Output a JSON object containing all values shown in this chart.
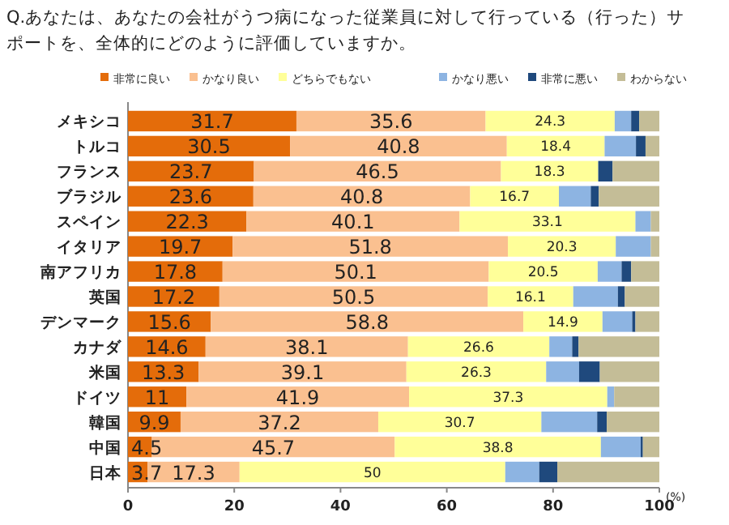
{
  "chart_data": {
    "type": "bar",
    "orientation": "horizontal",
    "stacked": true,
    "title": "Q.あなたは、あなたの会社がうつ病になった従業員に対して行っている（行った）サポートを、全体的にどのように評価していますか。",
    "xlabel": "(%)",
    "categories": [
      "メキシコ",
      "トルコ",
      "フランス",
      "ブラジル",
      "スペイン",
      "イタリア",
      "南アフリカ",
      "英国",
      "デンマーク",
      "カナダ",
      "米国",
      "ドイツ",
      "韓国",
      "中国",
      "日本"
    ],
    "xlim": [
      0,
      100
    ],
    "xticks": [
      0,
      20,
      40,
      60,
      80,
      100
    ],
    "grid": false,
    "legend": "top",
    "series": [
      {
        "name": "非常に良い",
        "color": "#e46c0a",
        "values": [
          31.7,
          30.5,
          23.7,
          23.6,
          22.3,
          19.7,
          17.8,
          17.2,
          15.6,
          14.6,
          13.3,
          11,
          9.9,
          4.5,
          3.7
        ],
        "value_labels": [
          "31.7",
          "30.5",
          "23.7",
          "23.6",
          "22.3",
          "19.7",
          "17.8",
          "17.2",
          "15.6",
          "14.6",
          "13.3",
          "11",
          "9.9",
          "4.5",
          "3.7"
        ]
      },
      {
        "name": "かなり良い",
        "color": "#fac090",
        "values": [
          35.6,
          40.8,
          46.5,
          40.8,
          40.1,
          51.8,
          50.1,
          50.5,
          58.8,
          38.1,
          39.1,
          41.9,
          37.2,
          45.7,
          17.3
        ],
        "value_labels": [
          "35.6",
          "40.8",
          "46.5",
          "40.8",
          "40.1",
          "51.8",
          "50.1",
          "50.5",
          "58.8",
          "38.1",
          "39.1",
          "41.9",
          "37.2",
          "45.7",
          "17.3"
        ]
      },
      {
        "name": "どちらでもない",
        "color": "#ffff99",
        "values": [
          24.3,
          18.4,
          18.3,
          16.7,
          33.1,
          20.3,
          20.5,
          16.1,
          14.9,
          26.6,
          26.3,
          37.3,
          30.7,
          38.8,
          50
        ],
        "value_labels": [
          "24.3",
          "18.4",
          "18.3",
          "16.7",
          "33.1",
          "20.3",
          "20.5",
          "16.1",
          "14.9",
          "26.6",
          "26.3",
          "37.3",
          "30.7",
          "38.8",
          "50"
        ]
      },
      {
        "name": "かなり悪い",
        "color": "#8db4e2",
        "values": [
          3.1,
          5.9,
          0,
          6.0,
          2.9,
          6.6,
          4.5,
          8.4,
          5.6,
          4.3,
          6.2,
          1.3,
          10.5,
          7.5,
          6.4
        ]
      },
      {
        "name": "非常に悪い",
        "color": "#1f497d",
        "values": [
          1.5,
          1.8,
          2.7,
          1.5,
          0,
          0,
          1.8,
          1.3,
          0.6,
          1.2,
          3.9,
          0,
          1.8,
          0.4,
          3.4
        ]
      },
      {
        "name": "わからない",
        "color": "#c4bd97",
        "values": [
          3.8,
          2.6,
          8.8,
          11.4,
          1.6,
          1.6,
          5.3,
          6.5,
          4.5,
          15.2,
          11.2,
          8.5,
          9.9,
          3.1,
          19.2
        ]
      }
    ]
  }
}
